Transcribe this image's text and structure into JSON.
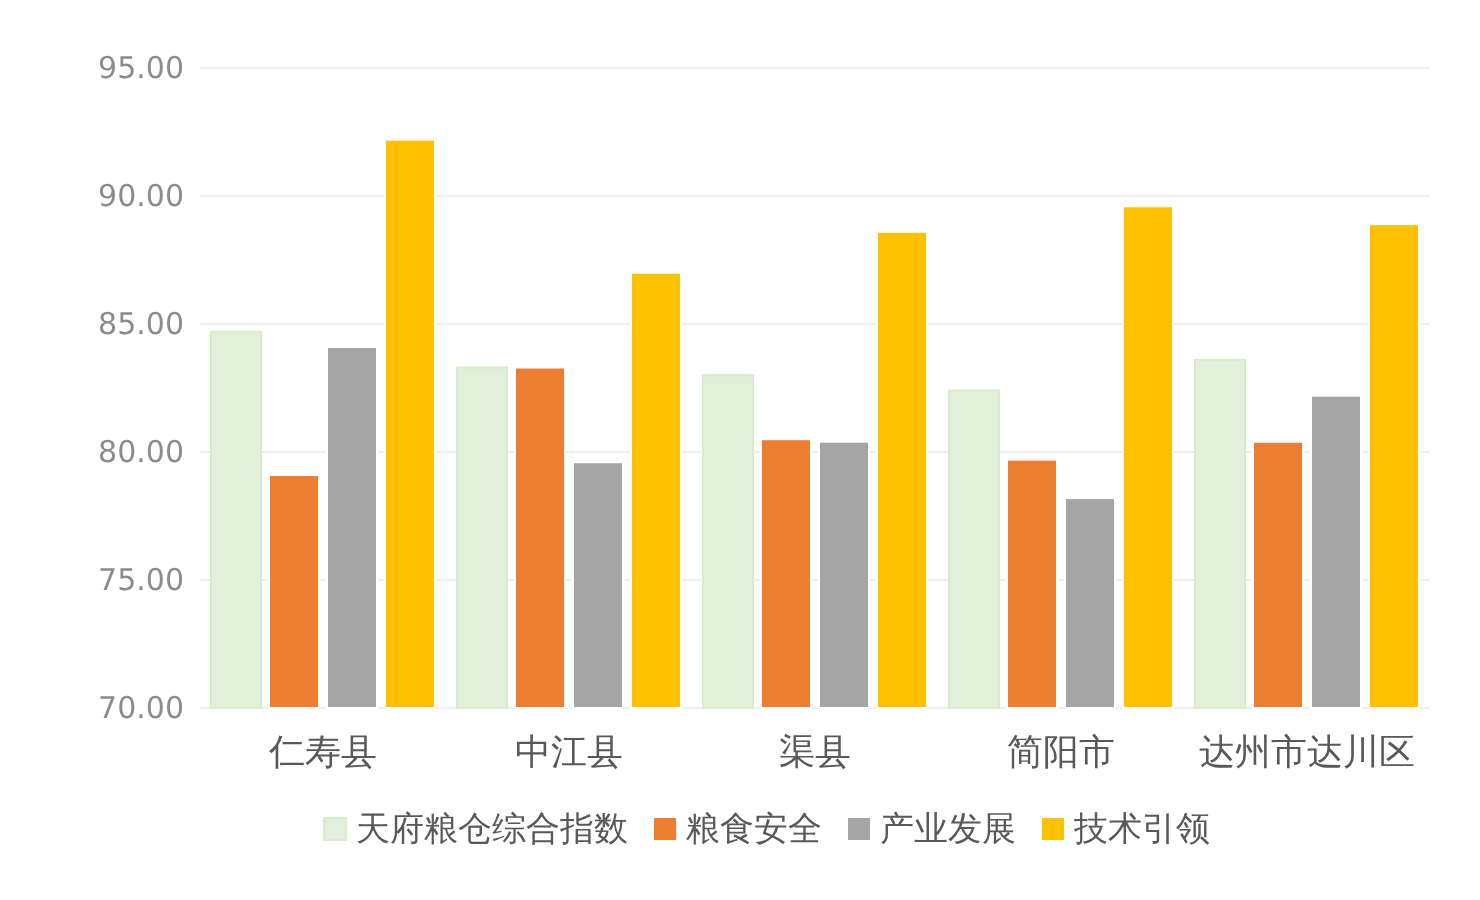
{
  "chart_data": {
    "type": "bar",
    "categories": [
      "仁寿县",
      "中江县",
      "渠县",
      "简阳市",
      "达州市达川区"
    ],
    "series": [
      {
        "name": "天府粮仓综合指数",
        "color": "#e2efda",
        "values": [
          84.7,
          83.3,
          83.0,
          82.4,
          83.6
        ]
      },
      {
        "name": "粮食安全",
        "color": "#ed7d31",
        "values": [
          79.1,
          83.3,
          80.5,
          79.7,
          80.4
        ]
      },
      {
        "name": "产业发展",
        "color": "#a5a5a5",
        "values": [
          84.1,
          79.6,
          80.4,
          78.2,
          82.2
        ]
      },
      {
        "name": "技术引领",
        "color": "#ffc000",
        "values": [
          92.2,
          87.0,
          88.6,
          89.6,
          88.9
        ]
      }
    ],
    "ylim": [
      70,
      95
    ],
    "yticks": [
      {
        "value": 70,
        "label": "70.00"
      },
      {
        "value": 75,
        "label": "75.00"
      },
      {
        "value": 80,
        "label": "80.00"
      },
      {
        "value": 85,
        "label": "85.00"
      },
      {
        "value": 90,
        "label": "90.00"
      },
      {
        "value": 95,
        "label": "95.00"
      }
    ],
    "grid": "y",
    "legend": "bottom"
  }
}
